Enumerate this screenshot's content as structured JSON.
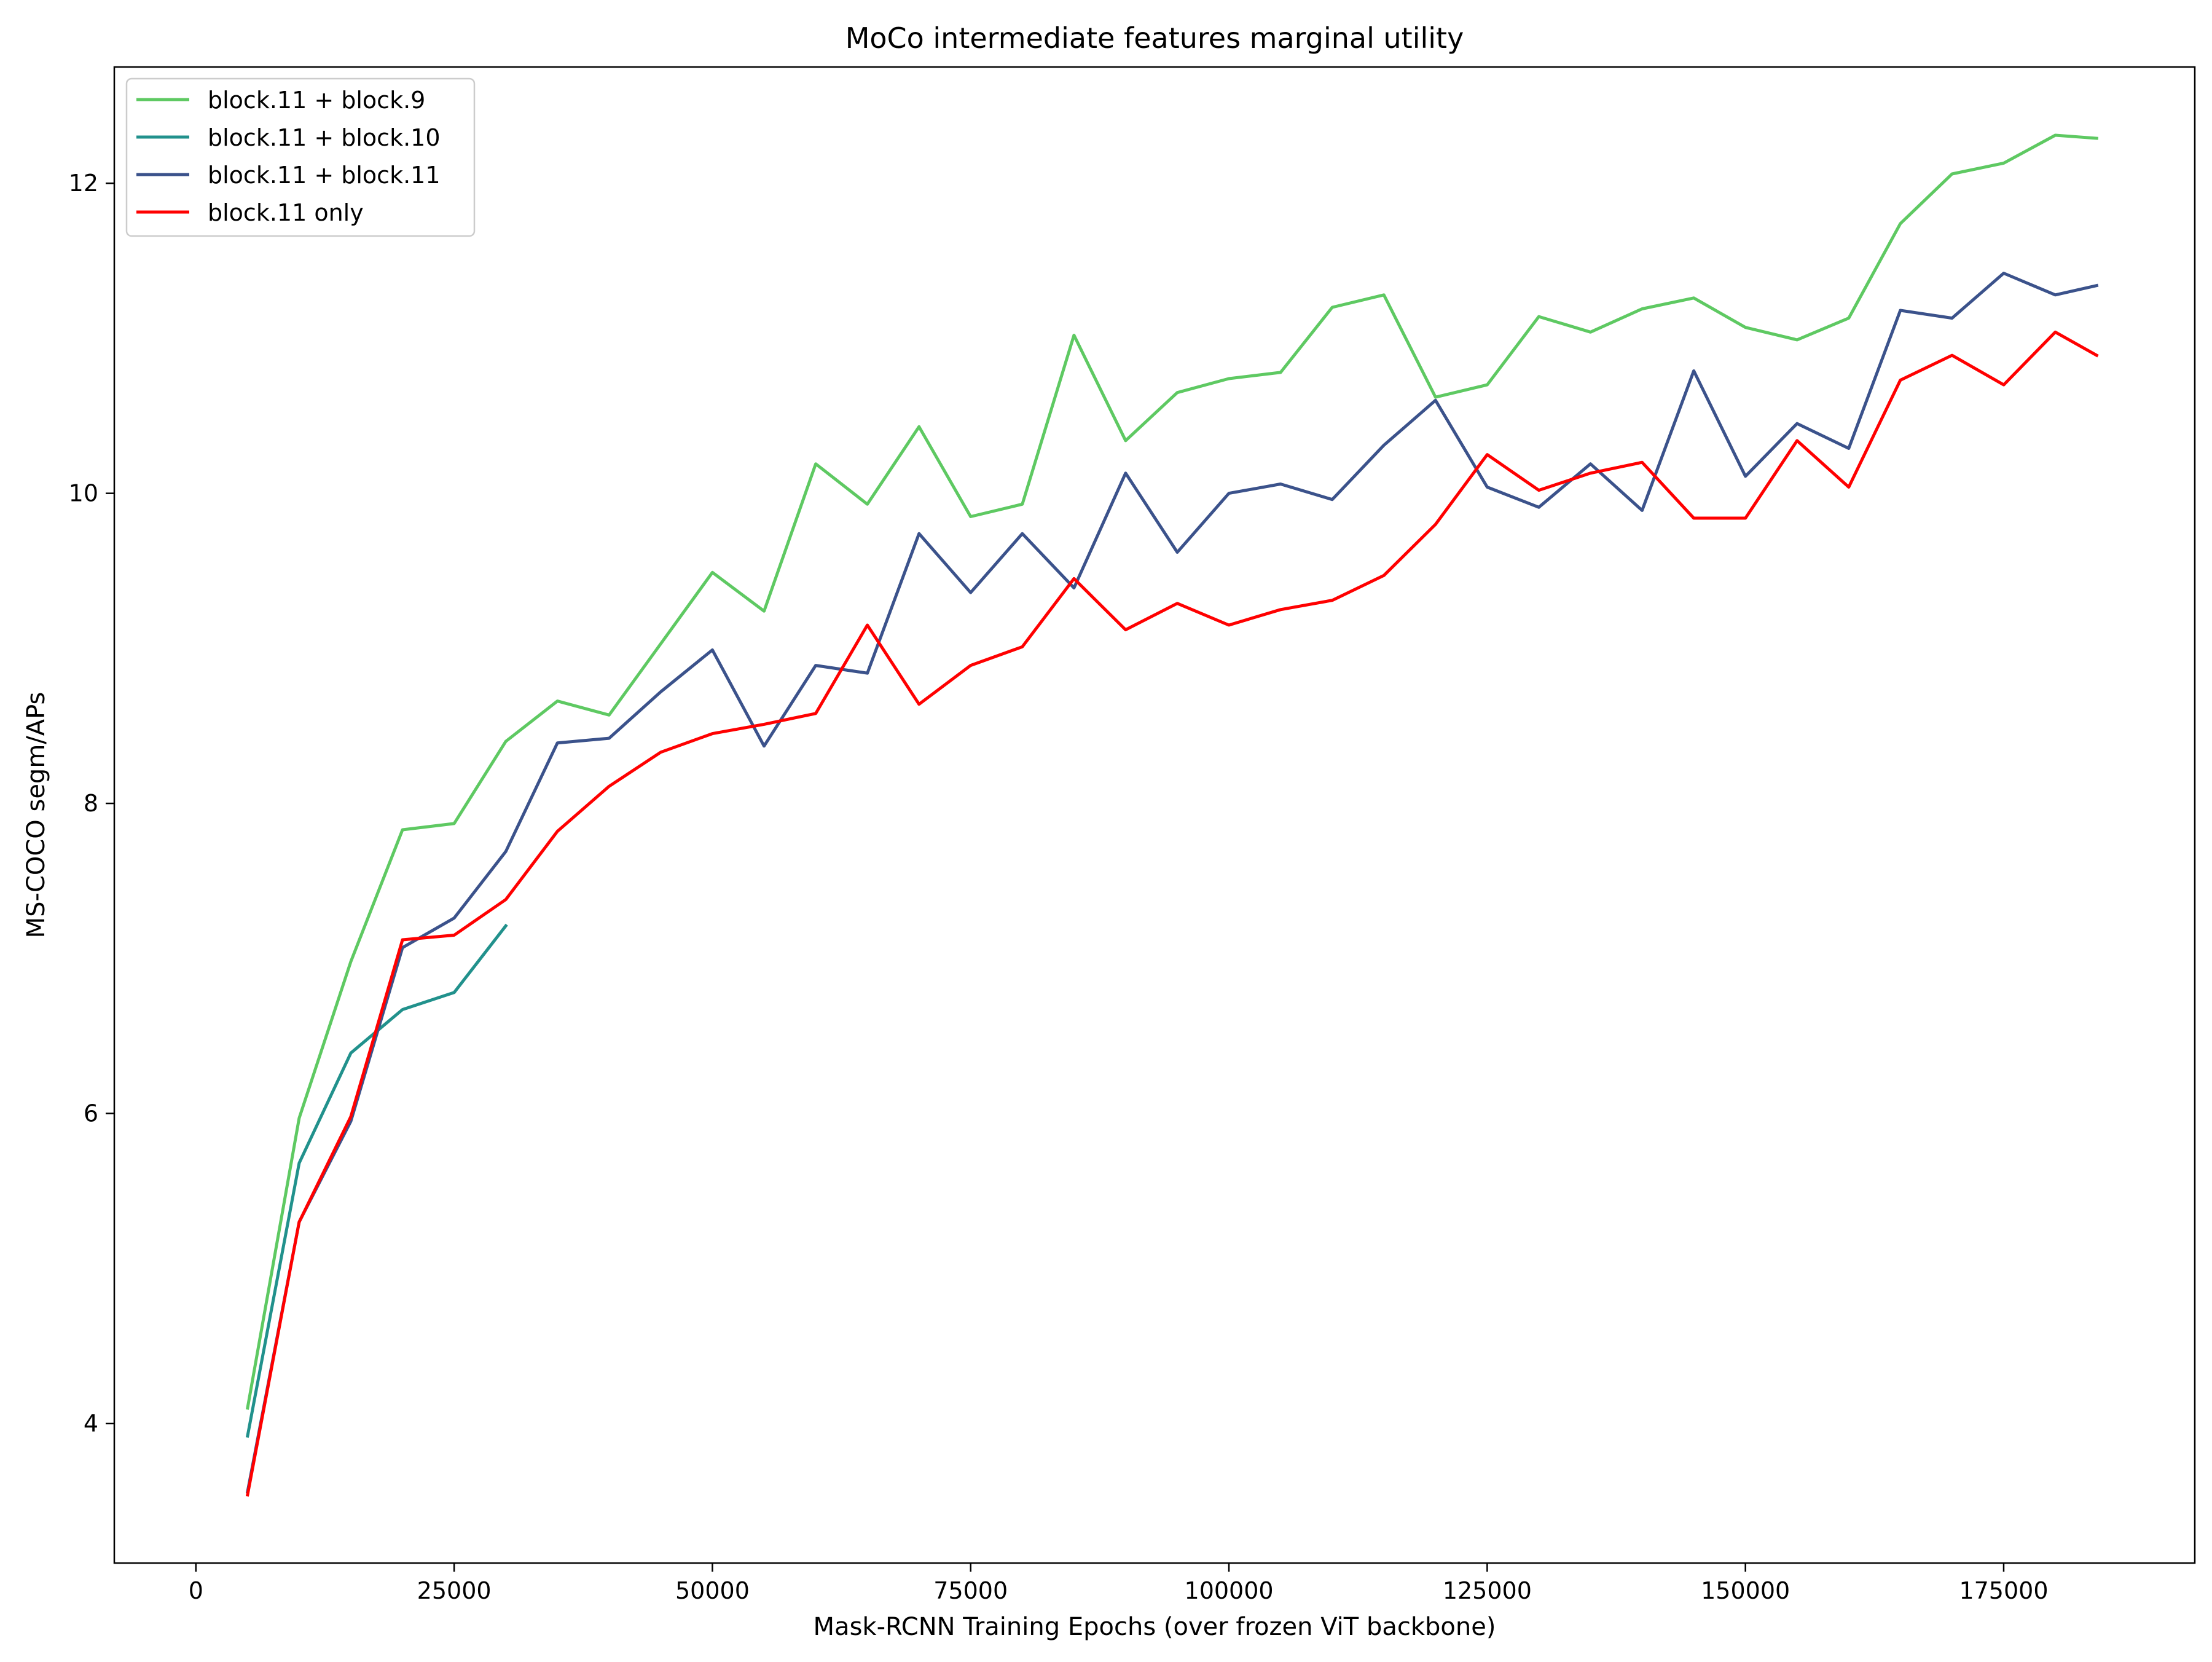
{
  "chart_data": {
    "type": "line",
    "title": "MoCo intermediate features marginal utility",
    "xlabel": "Mask-RCNN Training Epochs (over frozen ViT backbone)",
    "ylabel": "MS-COCO segm/APs",
    "xlim": [
      -7900,
      193500
    ],
    "ylim": [
      3.1,
      12.75
    ],
    "xticks": [
      0,
      25000,
      50000,
      75000,
      100000,
      125000,
      150000,
      175000
    ],
    "xtick_labels": [
      "0",
      "25000",
      "50000",
      "75000",
      "100000",
      "125000",
      "150000",
      "175000"
    ],
    "yticks": [
      4,
      6,
      8,
      10,
      12
    ],
    "ytick_labels": [
      "4",
      "6",
      "8",
      "10",
      "12"
    ],
    "grid": false,
    "legend_position": "upper-left",
    "series": [
      {
        "name": "block.11 + block.9",
        "color": "#5ec962",
        "x": [
          5000,
          10000,
          15000,
          20000,
          25000,
          30000,
          35000,
          40000,
          45000,
          50000,
          55000,
          60000,
          65000,
          70000,
          75000,
          80000,
          85000,
          90000,
          95000,
          100000,
          105000,
          110000,
          115000,
          120000,
          125000,
          130000,
          135000,
          140000,
          145000,
          150000,
          155000,
          160000,
          165000,
          170000,
          175000,
          180000,
          184000
        ],
        "values": [
          4.1,
          5.97,
          6.98,
          7.83,
          7.87,
          8.4,
          8.66,
          8.57,
          9.03,
          9.49,
          9.24,
          10.19,
          9.93,
          10.43,
          9.85,
          9.93,
          11.02,
          10.34,
          10.65,
          10.74,
          10.78,
          11.2,
          11.28,
          10.62,
          10.7,
          11.14,
          11.04,
          11.19,
          11.26,
          11.07,
          10.99,
          11.13,
          11.74,
          12.06,
          12.13,
          12.31,
          12.29
        ]
      },
      {
        "name": "block.11 + block.10",
        "color": "#21918c",
        "x": [
          5000,
          10000,
          15000,
          20000,
          25000,
          30000
        ],
        "values": [
          3.92,
          5.68,
          6.39,
          6.67,
          6.78,
          7.21
        ]
      },
      {
        "name": "block.11 + block.11",
        "color": "#3b528b",
        "x": [
          5000,
          10000,
          15000,
          20000,
          25000,
          30000,
          35000,
          40000,
          45000,
          50000,
          55000,
          60000,
          65000,
          70000,
          75000,
          80000,
          85000,
          90000,
          95000,
          100000,
          105000,
          110000,
          115000,
          120000,
          125000,
          130000,
          135000,
          140000,
          145000,
          150000,
          155000,
          160000,
          165000,
          170000,
          175000,
          180000,
          184000
        ],
        "values": [
          3.56,
          5.3,
          5.95,
          7.07,
          7.26,
          7.69,
          8.39,
          8.42,
          8.72,
          8.99,
          8.37,
          8.89,
          8.84,
          9.74,
          9.36,
          9.74,
          9.39,
          10.13,
          9.62,
          10.0,
          10.06,
          9.96,
          10.31,
          10.6,
          10.04,
          9.91,
          10.19,
          9.89,
          10.79,
          10.11,
          10.45,
          10.29,
          11.18,
          11.13,
          11.42,
          11.28,
          11.34
        ]
      },
      {
        "name": "block.11 only",
        "color": "#ff0000",
        "x": [
          5000,
          10000,
          15000,
          20000,
          25000,
          30000,
          35000,
          40000,
          45000,
          50000,
          55000,
          60000,
          65000,
          70000,
          75000,
          80000,
          85000,
          90000,
          95000,
          100000,
          105000,
          110000,
          115000,
          120000,
          125000,
          130000,
          135000,
          140000,
          145000,
          150000,
          155000,
          160000,
          165000,
          170000,
          175000,
          180000,
          184000
        ],
        "values": [
          3.54,
          5.3,
          5.98,
          7.12,
          7.15,
          7.38,
          7.82,
          8.11,
          8.33,
          8.45,
          8.51,
          8.58,
          9.15,
          8.64,
          8.89,
          9.01,
          9.45,
          9.12,
          9.29,
          9.15,
          9.25,
          9.31,
          9.47,
          9.8,
          10.25,
          10.02,
          10.13,
          10.2,
          9.84,
          9.84,
          10.34,
          10.04,
          10.73,
          10.89,
          10.7,
          11.04,
          10.89
        ]
      }
    ]
  }
}
